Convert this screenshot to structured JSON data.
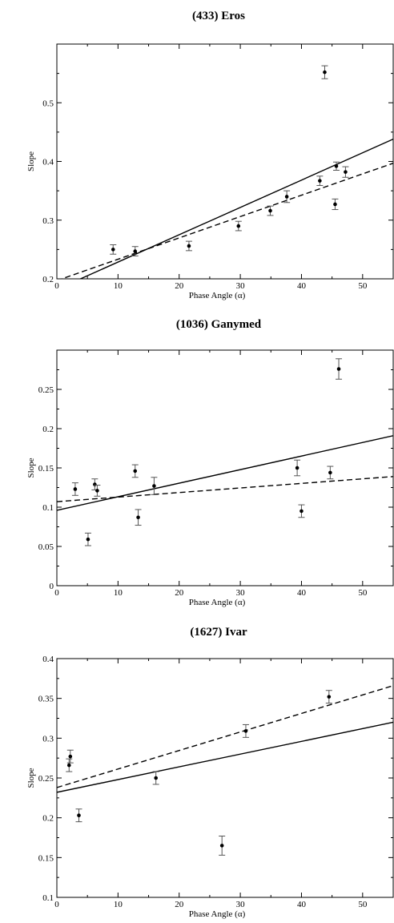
{
  "colors": {
    "line": "#000000",
    "errorbar": "#555555",
    "point": "#000000",
    "background": "#ffffff"
  },
  "chart_data": [
    {
      "type": "scatter",
      "title": "(433) Eros",
      "xlabel": "Phase Angle (α)",
      "ylabel": "Slope",
      "xlim": [
        0,
        55
      ],
      "ylim": [
        0.2,
        0.6
      ],
      "xticks": [
        "0",
        "10",
        "20",
        "30",
        "40",
        "50"
      ],
      "yticks": [
        "0.2",
        "0.3",
        "0.4",
        "0.5"
      ],
      "ytick_values": [
        0.2,
        0.3,
        0.4,
        0.5
      ],
      "grid": false,
      "points": [
        {
          "x": 9.2,
          "y": 0.25,
          "err": 0.008
        },
        {
          "x": 12.8,
          "y": 0.247,
          "err": 0.008
        },
        {
          "x": 21.6,
          "y": 0.256,
          "err": 0.008
        },
        {
          "x": 29.7,
          "y": 0.29,
          "err": 0.008
        },
        {
          "x": 34.9,
          "y": 0.316,
          "err": 0.008
        },
        {
          "x": 37.6,
          "y": 0.34,
          "err": 0.01
        },
        {
          "x": 43.0,
          "y": 0.367,
          "err": 0.008
        },
        {
          "x": 43.8,
          "y": 0.552,
          "err": 0.011
        },
        {
          "x": 45.5,
          "y": 0.327,
          "err": 0.009
        },
        {
          "x": 45.7,
          "y": 0.392,
          "err": 0.007
        },
        {
          "x": 47.2,
          "y": 0.382,
          "err": 0.009
        }
      ],
      "fits": [
        {
          "style": "solid",
          "x": [
            0,
            55
          ],
          "y": [
            0.182,
            0.438
          ]
        },
        {
          "style": "dashed",
          "x": [
            0,
            55
          ],
          "y": [
            0.197,
            0.397
          ]
        }
      ]
    },
    {
      "type": "scatter",
      "title": "(1036) Ganymed",
      "xlabel": "Phase Angle (α)",
      "ylabel": "Slope",
      "xlim": [
        0,
        55
      ],
      "ylim": [
        0,
        0.3
      ],
      "xticks": [
        "0",
        "10",
        "20",
        "30",
        "40",
        "50"
      ],
      "yticks": [
        "0",
        "0.05",
        "0.1",
        "0.15",
        "0.2",
        "0.25"
      ],
      "ytick_values": [
        0,
        0.05,
        0.1,
        0.15,
        0.2,
        0.25
      ],
      "grid": false,
      "points": [
        {
          "x": 3.0,
          "y": 0.123,
          "err": 0.008
        },
        {
          "x": 5.1,
          "y": 0.059,
          "err": 0.008
        },
        {
          "x": 6.2,
          "y": 0.129,
          "err": 0.007
        },
        {
          "x": 6.6,
          "y": 0.121,
          "err": 0.007
        },
        {
          "x": 12.8,
          "y": 0.146,
          "err": 0.008
        },
        {
          "x": 13.3,
          "y": 0.087,
          "err": 0.01
        },
        {
          "x": 15.9,
          "y": 0.127,
          "err": 0.011
        },
        {
          "x": 39.3,
          "y": 0.15,
          "err": 0.01
        },
        {
          "x": 40.0,
          "y": 0.095,
          "err": 0.008
        },
        {
          "x": 44.7,
          "y": 0.144,
          "err": 0.008
        },
        {
          "x": 46.1,
          "y": 0.276,
          "err": 0.013
        }
      ],
      "fits": [
        {
          "style": "solid",
          "x": [
            0,
            55
          ],
          "y": [
            0.096,
            0.191
          ]
        },
        {
          "style": "dashed",
          "x": [
            0,
            55
          ],
          "y": [
            0.107,
            0.139
          ]
        }
      ]
    },
    {
      "type": "scatter",
      "title": "(1627) Ivar",
      "xlabel": "Phase Angle (α)",
      "ylabel": "Slope",
      "xlim": [
        0,
        55
      ],
      "ylim": [
        0.1,
        0.4
      ],
      "xticks": [
        "0",
        "10",
        "20",
        "30",
        "40",
        "50"
      ],
      "yticks": [
        "0.1",
        "0.15",
        "0.2",
        "0.25",
        "0.3",
        "0.35",
        "0.4"
      ],
      "ytick_values": [
        0.1,
        0.15,
        0.2,
        0.25,
        0.3,
        0.35,
        0.4
      ],
      "grid": false,
      "points": [
        {
          "x": 2.0,
          "y": 0.266,
          "err": 0.008
        },
        {
          "x": 2.2,
          "y": 0.277,
          "err": 0.008
        },
        {
          "x": 3.6,
          "y": 0.203,
          "err": 0.008
        },
        {
          "x": 16.2,
          "y": 0.25,
          "err": 0.008
        },
        {
          "x": 27.0,
          "y": 0.165,
          "err": 0.012
        },
        {
          "x": 30.9,
          "y": 0.309,
          "err": 0.008
        },
        {
          "x": 44.5,
          "y": 0.352,
          "err": 0.008
        }
      ],
      "fits": [
        {
          "style": "solid",
          "x": [
            0,
            55
          ],
          "y": [
            0.232,
            0.32
          ]
        },
        {
          "style": "dashed",
          "x": [
            0,
            55
          ],
          "y": [
            0.238,
            0.366
          ]
        }
      ]
    }
  ]
}
